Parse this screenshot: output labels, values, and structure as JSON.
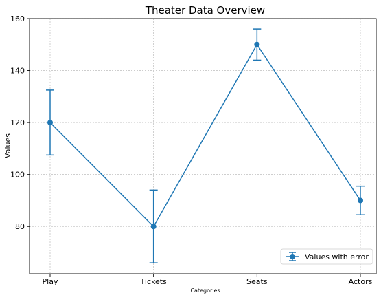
{
  "chart_data": {
    "type": "line",
    "title": "Theater Data Overview",
    "xlabel": "Categories",
    "ylabel": "Values",
    "categories": [
      "Play",
      "Tickets",
      "Seats",
      "Actors"
    ],
    "series": [
      {
        "name": "Values with error",
        "values": [
          120,
          80,
          150,
          90
        ],
        "errors": [
          12.5,
          14,
          6,
          5.5
        ],
        "color": "#1f77b4",
        "marker": "circle"
      }
    ],
    "ylim": [
      61.8,
      160
    ],
    "yticks": [
      80,
      100,
      120,
      140,
      160
    ],
    "ytick_labels": [
      "80",
      "100",
      "120",
      "140",
      "160"
    ],
    "grid": true,
    "legend": "bottom-right"
  }
}
